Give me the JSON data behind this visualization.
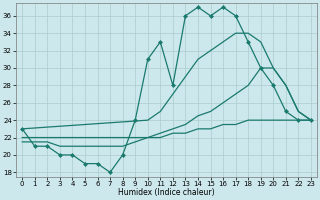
{
  "series": [
    {
      "x": [
        0,
        1,
        2,
        3,
        4,
        5,
        6,
        7,
        8,
        9,
        10,
        11,
        12,
        13,
        14,
        15,
        16,
        17,
        18,
        19,
        20,
        21,
        22,
        23
      ],
      "y": [
        23,
        21,
        21,
        20,
        20,
        19,
        19,
        18,
        20,
        24,
        31,
        33,
        28,
        36,
        37,
        36,
        37,
        36,
        33,
        30,
        28,
        25,
        24,
        24
      ],
      "color": "#1a7a6e",
      "lw": 0.9,
      "marker": "D",
      "ms": 2.0
    },
    {
      "x": [
        0,
        10,
        11,
        12,
        13,
        14,
        15,
        16,
        17,
        18,
        19,
        20,
        21,
        22,
        23
      ],
      "y": [
        23,
        24,
        25,
        27,
        29,
        31,
        32,
        33,
        34,
        34,
        33,
        30,
        28,
        25,
        24
      ],
      "color": "#1a7a6e",
      "lw": 0.9,
      "marker": null,
      "ms": 0
    },
    {
      "x": [
        0,
        10,
        11,
        12,
        13,
        14,
        15,
        16,
        17,
        18,
        19,
        20,
        21,
        22,
        23
      ],
      "y": [
        22,
        22,
        22.5,
        23,
        23.5,
        24.5,
        25,
        26,
        27,
        28,
        30,
        30,
        28,
        25,
        24
      ],
      "color": "#1a7a6e",
      "lw": 0.9,
      "marker": null,
      "ms": 0
    },
    {
      "x": [
        0,
        1,
        2,
        3,
        4,
        5,
        6,
        7,
        8,
        9,
        10,
        11,
        12,
        13,
        14,
        15,
        16,
        17,
        18,
        19,
        20,
        21,
        22,
        23
      ],
      "y": [
        21.5,
        21.5,
        21.5,
        21,
        21,
        21,
        21,
        21,
        21,
        21.5,
        22,
        22,
        22.5,
        22.5,
        23,
        23,
        23.5,
        23.5,
        24,
        24,
        24,
        24,
        24,
        24
      ],
      "color": "#1a7a6e",
      "lw": 0.9,
      "marker": null,
      "ms": 0
    }
  ],
  "xlabel": "Humidex (Indice chaleur)",
  "xlim": [
    -0.5,
    23.5
  ],
  "ylim": [
    17.5,
    37.5
  ],
  "yticks": [
    18,
    20,
    22,
    24,
    26,
    28,
    30,
    32,
    34,
    36
  ],
  "xticks": [
    0,
    1,
    2,
    3,
    4,
    5,
    6,
    7,
    8,
    9,
    10,
    11,
    12,
    13,
    14,
    15,
    16,
    17,
    18,
    19,
    20,
    21,
    22,
    23
  ],
  "bg_color": "#cde8ec",
  "grid_color": "#aacccc",
  "line_color": "#1a7a6e"
}
